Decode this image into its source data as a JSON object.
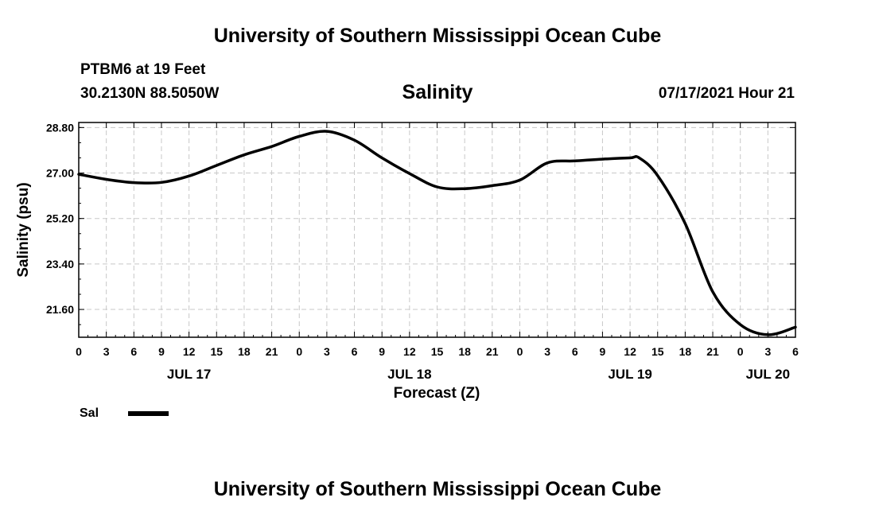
{
  "header": {
    "title": "University of Southern Mississippi Ocean Cube",
    "station": "PTBM6 at 19 Feet",
    "coords": "30.2130N  88.5050W",
    "timestamp": "07/17/2021 Hour 21"
  },
  "footer": {
    "title": "University of Southern Mississippi Ocean Cube"
  },
  "chart_data": {
    "type": "line",
    "title": "Salinity",
    "xlabel": "Forecast (Z)",
    "ylabel": "Salinity (psu)",
    "x_unit": "forecast hour",
    "xlim": [
      0,
      78
    ],
    "ylim": [
      20.5,
      29.0
    ],
    "grid": true,
    "x_ticks": [
      {
        "h": 0,
        "label": "0"
      },
      {
        "h": 3,
        "label": "3"
      },
      {
        "h": 6,
        "label": "6"
      },
      {
        "h": 9,
        "label": "9"
      },
      {
        "h": 12,
        "label": "12"
      },
      {
        "h": 15,
        "label": "15"
      },
      {
        "h": 18,
        "label": "18"
      },
      {
        "h": 21,
        "label": "21"
      },
      {
        "h": 24,
        "label": "0"
      },
      {
        "h": 27,
        "label": "3"
      },
      {
        "h": 30,
        "label": "6"
      },
      {
        "h": 33,
        "label": "9"
      },
      {
        "h": 36,
        "label": "12"
      },
      {
        "h": 39,
        "label": "15"
      },
      {
        "h": 42,
        "label": "18"
      },
      {
        "h": 45,
        "label": "21"
      },
      {
        "h": 48,
        "label": "0"
      },
      {
        "h": 51,
        "label": "3"
      },
      {
        "h": 54,
        "label": "6"
      },
      {
        "h": 57,
        "label": "9"
      },
      {
        "h": 60,
        "label": "12"
      },
      {
        "h": 63,
        "label": "15"
      },
      {
        "h": 66,
        "label": "18"
      },
      {
        "h": 69,
        "label": "21"
      },
      {
        "h": 72,
        "label": "0"
      },
      {
        "h": 75,
        "label": "3"
      },
      {
        "h": 78,
        "label": "6"
      }
    ],
    "date_labels": [
      {
        "h": 12,
        "label": "JUL 17"
      },
      {
        "h": 36,
        "label": "JUL 18"
      },
      {
        "h": 60,
        "label": "JUL 19"
      },
      {
        "h": 75,
        "label": "JUL 20"
      }
    ],
    "y_ticks": [
      {
        "v": 21.6,
        "label": "21.60"
      },
      {
        "v": 23.4,
        "label": "23.40"
      },
      {
        "v": 25.2,
        "label": "25.20"
      },
      {
        "v": 27.0,
        "label": "27.00"
      },
      {
        "v": 28.8,
        "label": "28.80"
      }
    ],
    "series": [
      {
        "name": "Sal",
        "x": [
          0,
          3,
          6,
          9,
          12,
          15,
          18,
          21,
          24,
          27,
          30,
          33,
          36,
          39,
          42,
          45,
          48,
          51,
          54,
          57,
          60,
          61,
          63,
          66,
          69,
          72,
          75,
          78
        ],
        "values": [
          26.95,
          26.75,
          26.62,
          26.63,
          26.88,
          27.3,
          27.72,
          28.05,
          28.45,
          28.65,
          28.3,
          27.6,
          26.98,
          26.45,
          26.38,
          26.5,
          26.72,
          27.4,
          27.48,
          27.55,
          27.6,
          27.6,
          26.9,
          25.0,
          22.3,
          21.0,
          20.6,
          20.9
        ]
      }
    ],
    "legend": {
      "placement": "bottom-left",
      "label": "Sal"
    }
  }
}
